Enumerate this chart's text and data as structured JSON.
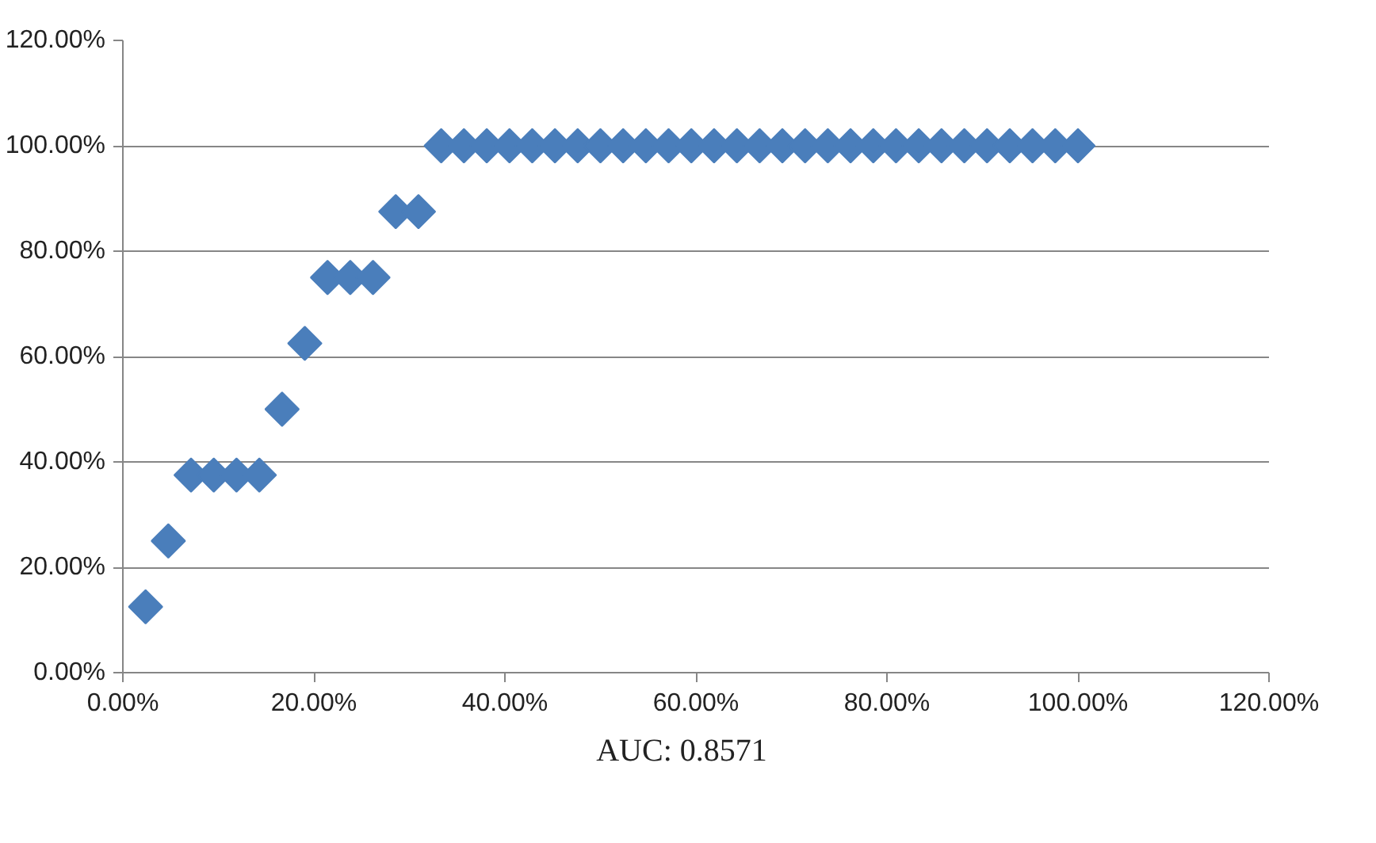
{
  "chart_data": {
    "type": "scatter",
    "marker": "diamond",
    "grid": "y",
    "x": [
      2.38,
      4.76,
      7.14,
      9.52,
      11.9,
      14.29,
      16.67,
      19.05,
      21.43,
      23.81,
      26.19,
      28.57,
      30.95,
      33.33,
      35.71,
      38.1,
      40.48,
      42.86,
      45.24,
      47.62,
      50,
      52.38,
      54.76,
      57.14,
      59.52,
      61.9,
      64.29,
      66.67,
      69.05,
      71.43,
      73.81,
      76.19,
      78.57,
      80.95,
      83.33,
      85.71,
      88.1,
      90.48,
      92.86,
      95.24,
      97.62,
      100
    ],
    "series": [
      {
        "color": "#4a7ebb",
        "values": [
          12.5,
          25,
          37.5,
          37.5,
          37.5,
          37.5,
          50,
          62.5,
          75,
          75,
          75,
          87.5,
          87.5,
          100,
          100,
          100,
          100,
          100,
          100,
          100,
          100,
          100,
          100,
          100,
          100,
          100,
          100,
          100,
          100,
          100,
          100,
          100,
          100,
          100,
          100,
          100,
          100,
          100,
          100,
          100,
          100,
          100
        ]
      }
    ],
    "xlim": [
      0,
      120
    ],
    "ylim": [
      0,
      120
    ],
    "xticks": [
      {
        "value": 0,
        "label": "0.00%"
      },
      {
        "value": 20,
        "label": "20.00%"
      },
      {
        "value": 40,
        "label": "40.00%"
      },
      {
        "value": 60,
        "label": "60.00%"
      },
      {
        "value": 80,
        "label": "80.00%"
      },
      {
        "value": 100,
        "label": "100.00%"
      },
      {
        "value": 120,
        "label": "120.00%"
      }
    ],
    "yticks": [
      {
        "value": 0,
        "label": "0.00%"
      },
      {
        "value": 20,
        "label": "20.00%"
      },
      {
        "value": 40,
        "label": "40.00%"
      },
      {
        "value": 60,
        "label": "60.00%"
      },
      {
        "value": 80,
        "label": "80.00%"
      },
      {
        "value": 100,
        "label": "100.00%"
      },
      {
        "value": 120,
        "label": "120.00%"
      }
    ],
    "annotations": [
      "AUC: 0.8571"
    ]
  }
}
